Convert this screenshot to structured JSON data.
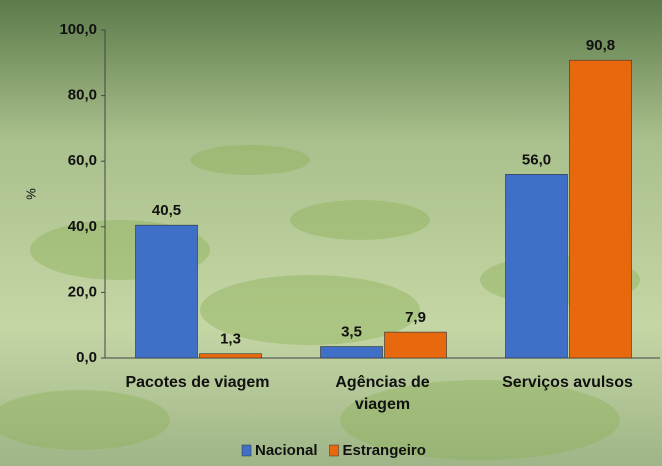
{
  "chart_data": {
    "type": "bar",
    "y_label": "%",
    "categories": [
      "Pacotes de viagem",
      "Agências de viagem",
      "Serviços avulsos"
    ],
    "series": [
      {
        "name": "Nacional",
        "color": "#3f6fc6",
        "values": [
          40.5,
          3.5,
          56.0
        ],
        "value_labels": [
          "40,5",
          "3,5",
          "56,0"
        ]
      },
      {
        "name": "Estrangeiro",
        "color": "#e8680e",
        "values": [
          1.3,
          7.9,
          90.8
        ],
        "value_labels": [
          "1,3",
          "7,9",
          "90,8"
        ]
      }
    ],
    "ylim": [
      0,
      100
    ],
    "yticks": [
      {
        "value": 0,
        "label": "0,0"
      },
      {
        "value": 20,
        "label": "20,0"
      },
      {
        "value": 40,
        "label": "40,0"
      },
      {
        "value": 60,
        "label": "60,0"
      },
      {
        "value": 80,
        "label": "80,0"
      },
      {
        "value": 100,
        "label": "100,0"
      }
    ],
    "legend": "bottom"
  }
}
